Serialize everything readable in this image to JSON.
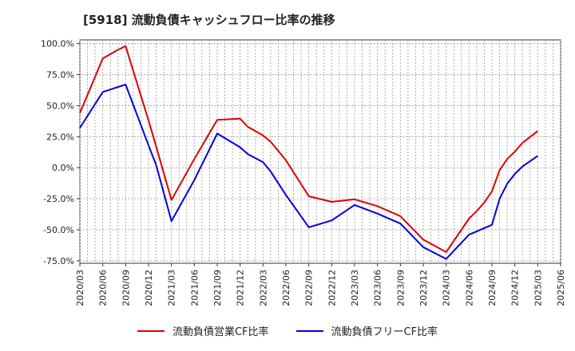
{
  "title": "[5918]  流動負債キャッシュフロー比率の推移",
  "chart_data": {
    "type": "line",
    "title": "[5918]  流動負債キャッシュフロー比率の推移",
    "xlabel": "",
    "ylabel": "",
    "ylim": [
      -77,
      103
    ],
    "yticks": [
      "100.0%",
      "75.0%",
      "50.0%",
      "25.0%",
      "0.0%",
      "-25.0%",
      "-50.0%",
      "-75.0%"
    ],
    "ytick_values": [
      100,
      75,
      50,
      25,
      0,
      -25,
      -50,
      -75
    ],
    "xticks": [
      "2020/03",
      "2020/06",
      "2020/09",
      "2020/12",
      "2021/03",
      "2021/06",
      "2021/09",
      "2021/12",
      "2022/03",
      "2022/06",
      "2022/09",
      "2022/12",
      "2023/03",
      "2023/06",
      "2023/09",
      "2023/12",
      "2024/03",
      "2024/06",
      "2024/09",
      "2024/12",
      "2025/03",
      "2025/06"
    ],
    "grid": true,
    "legend_position": "bottom",
    "series": [
      {
        "name": "流動負債営業CF比率",
        "color": "#dd0000",
        "points": [
          [
            "2020/03",
            44
          ],
          [
            "2020/06",
            88
          ],
          [
            "2020/08",
            95
          ],
          [
            "2020/09",
            98
          ],
          [
            "2020/12",
            38
          ],
          [
            "2021/01",
            17
          ],
          [
            "2021/03",
            -26
          ],
          [
            "2021/06",
            7
          ],
          [
            "2021/09",
            38.5
          ],
          [
            "2021/12",
            39.5
          ],
          [
            "2022/01",
            33
          ],
          [
            "2022/03",
            26
          ],
          [
            "2022/04",
            21
          ],
          [
            "2022/06",
            6
          ],
          [
            "2022/09",
            -23
          ],
          [
            "2022/12",
            -27.5
          ],
          [
            "2023/03",
            -25.5
          ],
          [
            "2023/06",
            -31
          ],
          [
            "2023/09",
            -39
          ],
          [
            "2023/12",
            -58
          ],
          [
            "2024/03",
            -68
          ],
          [
            "2024/06",
            -41
          ],
          [
            "2024/07",
            -35
          ],
          [
            "2024/08",
            -28
          ],
          [
            "2024/09",
            -19
          ],
          [
            "2024/10",
            -2
          ],
          [
            "2024/11",
            7
          ],
          [
            "2024/12",
            13
          ],
          [
            "2025/01",
            20
          ],
          [
            "2025/03",
            29.5
          ]
        ]
      },
      {
        "name": "流動負債フリーCF比率",
        "color": "#0000dd",
        "points": [
          [
            "2020/03",
            32
          ],
          [
            "2020/06",
            61
          ],
          [
            "2020/08",
            65
          ],
          [
            "2020/09",
            67
          ],
          [
            "2020/12",
            18
          ],
          [
            "2021/01",
            2
          ],
          [
            "2021/03",
            -43
          ],
          [
            "2021/06",
            -10
          ],
          [
            "2021/09",
            27.5
          ],
          [
            "2021/12",
            16.5
          ],
          [
            "2022/01",
            11
          ],
          [
            "2022/03",
            4.5
          ],
          [
            "2022/04",
            -3
          ],
          [
            "2022/06",
            -22
          ],
          [
            "2022/09",
            -48
          ],
          [
            "2022/12",
            -42.5
          ],
          [
            "2023/03",
            -30
          ],
          [
            "2023/06",
            -37
          ],
          [
            "2023/09",
            -45
          ],
          [
            "2023/12",
            -64
          ],
          [
            "2024/03",
            -73.5
          ],
          [
            "2024/06",
            -54
          ],
          [
            "2024/09",
            -46
          ],
          [
            "2024/10",
            -25
          ],
          [
            "2024/11",
            -13
          ],
          [
            "2024/12",
            -5
          ],
          [
            "2025/01",
            1
          ],
          [
            "2025/03",
            9.5
          ]
        ]
      }
    ]
  }
}
